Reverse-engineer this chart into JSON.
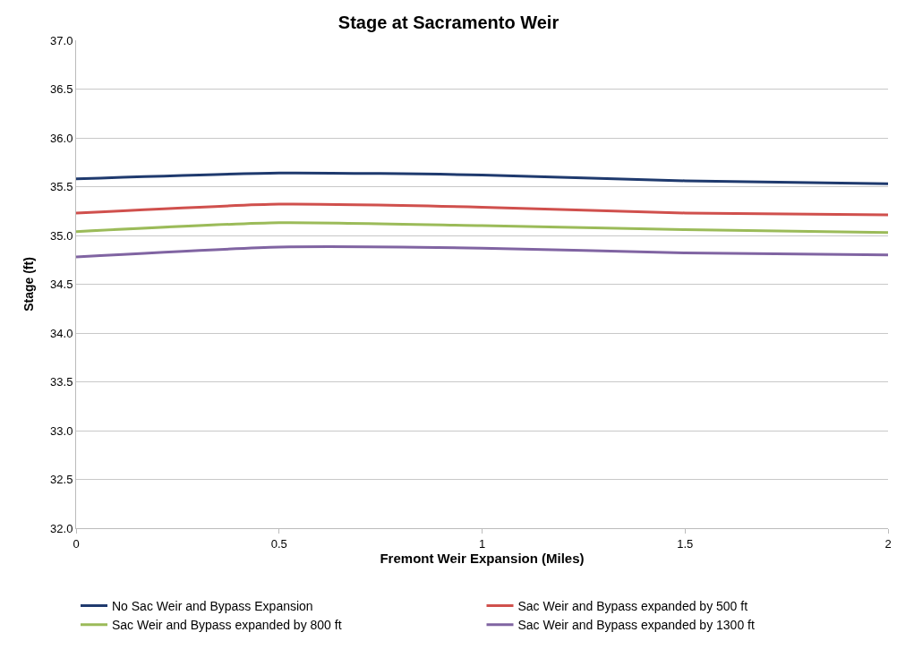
{
  "chart_data": {
    "type": "line",
    "title": "Stage at Sacramento Weir",
    "xlabel": "Fremont Weir Expansion (Miles)",
    "ylabel": "Stage (ft)",
    "x": [
      0,
      0.5,
      1,
      1.5,
      2
    ],
    "series": [
      {
        "name": "No Sac Weir and Bypass Expansion",
        "color": "#1f3a6e",
        "values": [
          35.58,
          35.64,
          35.62,
          35.56,
          35.53
        ]
      },
      {
        "name": "Sac Weir and Bypass expanded by 500 ft",
        "color": "#d0504d",
        "values": [
          35.23,
          35.32,
          35.29,
          35.23,
          35.21
        ]
      },
      {
        "name": "Sac Weir and Bypass expanded by 800 ft",
        "color": "#9bbb59",
        "values": [
          35.04,
          35.13,
          35.1,
          35.06,
          35.03
        ]
      },
      {
        "name": "Sac Weir and Bypass expanded by 1300 ft",
        "color": "#8064a2",
        "values": [
          34.78,
          34.88,
          34.87,
          34.82,
          34.8
        ]
      }
    ],
    "xlim": [
      0,
      2
    ],
    "xticks": [
      0,
      0.5,
      1,
      1.5,
      2
    ],
    "ylim": [
      32,
      37
    ],
    "yticks": [
      {
        "value": 32,
        "label": "32.0"
      },
      {
        "value": 32.5,
        "label": "32.5"
      },
      {
        "value": 33,
        "label": "33.0"
      },
      {
        "value": 33.5,
        "label": "33.5"
      },
      {
        "value": 34,
        "label": "34.0"
      },
      {
        "value": 34.5,
        "label": "34.5"
      },
      {
        "value": 35,
        "label": "35.0"
      },
      {
        "value": 35.5,
        "label": "35.5"
      },
      {
        "value": 36,
        "label": "36.0"
      },
      {
        "value": 36.5,
        "label": "36.5"
      },
      {
        "value": 37,
        "label": "37.0"
      }
    ],
    "grid": "y",
    "legend": "bottom",
    "marker": "none",
    "line_style": "solid"
  }
}
